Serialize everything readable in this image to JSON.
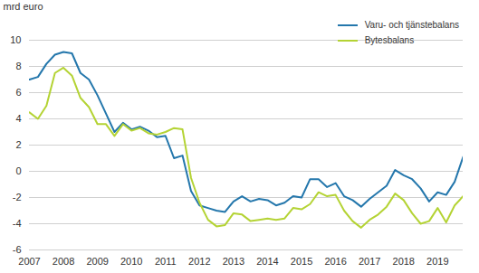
{
  "chart_data": {
    "type": "line",
    "x": [
      2007,
      2007.25,
      2007.5,
      2007.75,
      2008,
      2008.25,
      2008.5,
      2008.75,
      2009,
      2009.25,
      2009.5,
      2009.75,
      2010,
      2010.25,
      2010.5,
      2010.75,
      2011,
      2011.25,
      2011.5,
      2011.75,
      2012,
      2012.25,
      2012.5,
      2012.75,
      2013,
      2013.25,
      2013.5,
      2013.75,
      2014,
      2014.25,
      2014.5,
      2014.75,
      2015,
      2015.25,
      2015.5,
      2015.75,
      2016,
      2016.25,
      2016.5,
      2016.75,
      2017,
      2017.25,
      2017.5,
      2017.75,
      2018,
      2018.25,
      2018.5,
      2018.75,
      2019,
      2019.25,
      2019.5,
      2019.75
    ],
    "series": [
      {
        "name": "Varu- och tjänstebalans",
        "color": "#2477ac",
        "values": [
          7.0,
          7.2,
          8.2,
          8.9,
          9.1,
          9.0,
          7.5,
          7.0,
          5.8,
          4.4,
          3.0,
          3.7,
          3.2,
          3.4,
          3.1,
          2.6,
          2.7,
          1.0,
          1.2,
          -1.5,
          -2.6,
          -2.8,
          -3.0,
          -3.1,
          -2.3,
          -1.9,
          -2.3,
          -2.1,
          -2.2,
          -2.6,
          -2.4,
          -1.9,
          -2.0,
          -0.6,
          -0.6,
          -1.2,
          -0.9,
          -1.9,
          -2.2,
          -2.7,
          -2.1,
          -1.6,
          -1.1,
          0.1,
          -0.3,
          -0.6,
          -1.3,
          -2.3,
          -1.6,
          -1.8,
          -0.8,
          1.1
        ]
      },
      {
        "name": "Bytesbalans",
        "color": "#b4d334",
        "values": [
          4.5,
          4.0,
          5.0,
          7.5,
          7.9,
          7.3,
          5.6,
          4.9,
          3.6,
          3.6,
          2.7,
          3.6,
          3.1,
          3.3,
          2.9,
          2.8,
          3.0,
          3.3,
          3.2,
          -0.5,
          -2.4,
          -3.7,
          -4.2,
          -4.1,
          -3.2,
          -3.3,
          -3.8,
          -3.7,
          -3.6,
          -3.7,
          -3.6,
          -2.8,
          -2.9,
          -2.5,
          -1.6,
          -1.9,
          -1.8,
          -3.0,
          -3.8,
          -4.3,
          -3.7,
          -3.3,
          -2.7,
          -1.7,
          -2.2,
          -3.2,
          -4.0,
          -3.8,
          -2.8,
          -3.9,
          -2.6,
          -1.9
        ]
      }
    ],
    "xlim": [
      2007,
      2019.75
    ],
    "xticks": [
      2007,
      2008,
      2009,
      2010,
      2011,
      2012,
      2013,
      2014,
      2015,
      2016,
      2017,
      2018,
      2019
    ],
    "ylim": [
      -6,
      10
    ],
    "yticks": [
      -6,
      -4,
      -2,
      0,
      2,
      4,
      6,
      8,
      10
    ],
    "y_label": "mrd euro",
    "grid": true,
    "legend": "top-right"
  }
}
